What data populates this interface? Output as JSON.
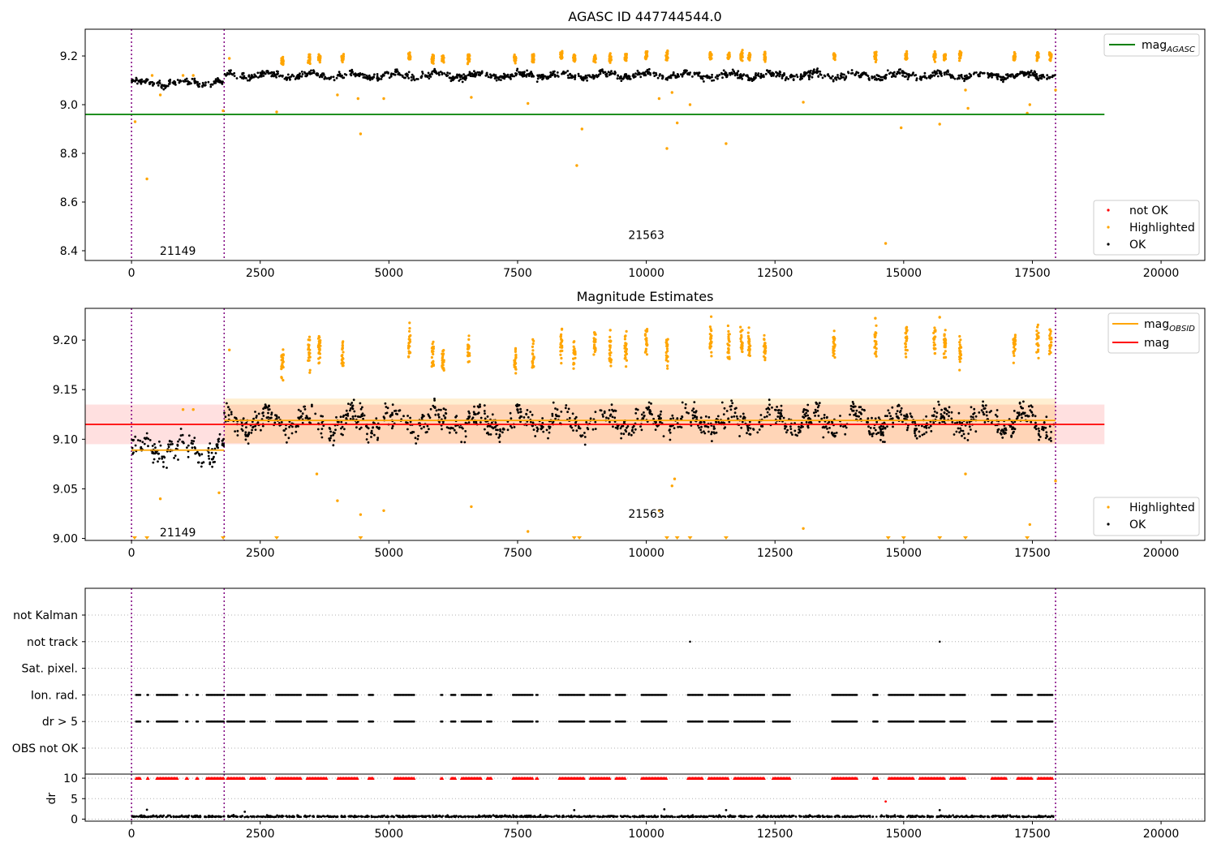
{
  "chart_data": [
    {
      "type": "scatter",
      "title": "AGASC ID 447744544.0",
      "xlim": [
        -900,
        20850
      ],
      "ylim": [
        8.36,
        9.31
      ],
      "xticks": [
        0,
        2500,
        5000,
        7500,
        10000,
        12500,
        15000,
        17500,
        20000
      ],
      "yticks": [
        8.4,
        8.6,
        8.8,
        9.0,
        9.2
      ],
      "obsid_boundaries": [
        0,
        1800,
        17950
      ],
      "obsid_labels": [
        {
          "text": "21149",
          "x": 900,
          "y": 8.4
        },
        {
          "text": "21563",
          "x": 10000,
          "y": 8.465
        }
      ],
      "reference_lines": [
        {
          "name": "mag",
          "subscript": "AGASC",
          "y": 8.96,
          "x": [
            -900,
            18900
          ],
          "color": "#008000"
        }
      ],
      "legend_lines_position": "upper right",
      "legend_points_position": "lower right",
      "legend_points": [
        {
          "name": "not OK",
          "color": "#ff0000"
        },
        {
          "name": "Highlighted",
          "color": "#ffa500"
        },
        {
          "name": "OK",
          "color": "#000000"
        }
      ],
      "series_ok": {
        "name": "OK",
        "color": "#000000",
        "x_range": [
          0,
          17950
        ],
        "segments": [
          {
            "x": [
              0,
              1800
            ],
            "level": 9.09
          },
          {
            "x": [
              1800,
              17950
            ],
            "level": 9.12
          }
        ]
      },
      "series_highlighted": {
        "name": "Highlighted",
        "color": "#ffa500",
        "clusters": [
          [
            2930,
            9.175
          ],
          [
            3450,
            9.19
          ],
          [
            3650,
            9.19
          ],
          [
            4100,
            9.19
          ],
          [
            5400,
            9.2
          ],
          [
            5850,
            9.19
          ],
          [
            6050,
            9.19
          ],
          [
            6550,
            9.19
          ],
          [
            7450,
            9.19
          ],
          [
            7800,
            9.19
          ],
          [
            8350,
            9.2
          ],
          [
            8600,
            9.19
          ],
          [
            9000,
            9.19
          ],
          [
            9300,
            9.19
          ],
          [
            9600,
            9.19
          ],
          [
            10000,
            9.2
          ],
          [
            10400,
            9.2
          ],
          [
            11250,
            9.2
          ],
          [
            11600,
            9.2
          ],
          [
            11850,
            9.2
          ],
          [
            12000,
            9.2
          ],
          [
            12300,
            9.2
          ],
          [
            13650,
            9.2
          ],
          [
            14450,
            9.2
          ],
          [
            15050,
            9.2
          ],
          [
            15600,
            9.2
          ],
          [
            15800,
            9.2
          ],
          [
            16100,
            9.2
          ],
          [
            17150,
            9.2
          ],
          [
            17600,
            9.2
          ],
          [
            17850,
            9.2
          ]
        ],
        "outliers": [
          [
            70,
            8.93
          ],
          [
            300,
            8.695
          ],
          [
            400,
            9.12
          ],
          [
            560,
            9.04
          ],
          [
            1000,
            9.12
          ],
          [
            1200,
            9.12
          ],
          [
            1780,
            8.975
          ],
          [
            1900,
            9.19
          ],
          [
            2820,
            8.97
          ],
          [
            4000,
            9.04
          ],
          [
            4450,
            8.88
          ],
          [
            4400,
            9.025
          ],
          [
            4900,
            9.025
          ],
          [
            6600,
            9.03
          ],
          [
            7700,
            9.005
          ],
          [
            8650,
            8.75
          ],
          [
            8750,
            8.9
          ],
          [
            9300,
            9.21
          ],
          [
            10250,
            9.025
          ],
          [
            10400,
            8.82
          ],
          [
            10500,
            9.05
          ],
          [
            10600,
            8.925
          ],
          [
            10850,
            9.0
          ],
          [
            11550,
            8.84
          ],
          [
            13050,
            9.01
          ],
          [
            14650,
            8.43
          ],
          [
            14950,
            8.905
          ],
          [
            15700,
            8.92
          ],
          [
            16200,
            9.06
          ],
          [
            16250,
            8.985
          ],
          [
            17400,
            8.965
          ],
          [
            17450,
            9.0
          ],
          [
            17950,
            9.06
          ]
        ]
      }
    },
    {
      "type": "scatter",
      "title": "Magnitude Estimates",
      "xlim": [
        -900,
        20850
      ],
      "ylim": [
        8.998,
        9.232
      ],
      "xticks": [
        0,
        2500,
        5000,
        7500,
        10000,
        12500,
        15000,
        17500,
        20000
      ],
      "yticks": [
        9.0,
        9.05,
        9.1,
        9.15,
        9.2
      ],
      "obsid_boundaries": [
        0,
        1800,
        17950
      ],
      "obsid_labels": [
        {
          "text": "21149",
          "x": 900,
          "y": 9.006
        },
        {
          "text": "21563",
          "x": 10000,
          "y": 9.025
        }
      ],
      "bands": [
        {
          "color": "#ff0000",
          "alpha": 0.12,
          "x": [
            -900,
            18900
          ],
          "y": [
            9.095,
            9.135
          ]
        },
        {
          "color": "#ffa500",
          "alpha": 0.18,
          "x": [
            1800,
            17950
          ],
          "y": [
            9.096,
            9.141
          ]
        }
      ],
      "reference_lines": [
        {
          "name": "mag",
          "subscript": "OBSID",
          "color": "#ffa500",
          "segments": [
            {
              "x": [
                0,
                1800
              ],
              "y": 9.089
            },
            {
              "x": [
                1800,
                17950
              ],
              "y": 9.119
            }
          ]
        },
        {
          "name": "mag",
          "subscript": "",
          "color": "#ff0000",
          "segments": [
            {
              "x": [
                -900,
                18900
              ],
              "y": 9.115
            }
          ]
        }
      ],
      "legend_lines_position": "upper right",
      "legend_points_position": "lower right",
      "legend_points": [
        {
          "name": "Highlighted",
          "color": "#ffa500"
        },
        {
          "name": "OK",
          "color": "#000000"
        }
      ],
      "series_ok": {
        "name": "OK",
        "color": "#000000",
        "x_range": [
          0,
          17950
        ],
        "segments": [
          {
            "x": [
              0,
              1800
            ],
            "level": 9.09
          },
          {
            "x": [
              1800,
              17950
            ],
            "level": 9.118
          }
        ]
      },
      "series_highlighted": {
        "name": "Highlighted",
        "color": "#ffa500",
        "clusters": [
          [
            2930,
            9.178
          ],
          [
            3450,
            9.19
          ],
          [
            3650,
            9.19
          ],
          [
            4100,
            9.185
          ],
          [
            5400,
            9.195
          ],
          [
            5850,
            9.183
          ],
          [
            6050,
            9.18
          ],
          [
            6550,
            9.19
          ],
          [
            7450,
            9.18
          ],
          [
            7800,
            9.183
          ],
          [
            8350,
            9.195
          ],
          [
            8600,
            9.188
          ],
          [
            9000,
            9.195
          ],
          [
            9300,
            9.19
          ],
          [
            9600,
            9.19
          ],
          [
            10000,
            9.2
          ],
          [
            10400,
            9.185
          ],
          [
            11250,
            9.2
          ],
          [
            11600,
            9.195
          ],
          [
            11850,
            9.198
          ],
          [
            12000,
            9.195
          ],
          [
            12300,
            9.195
          ],
          [
            13650,
            9.198
          ],
          [
            14450,
            9.2
          ],
          [
            15050,
            9.2
          ],
          [
            15600,
            9.2
          ],
          [
            15800,
            9.198
          ],
          [
            16100,
            9.19
          ],
          [
            17150,
            9.195
          ],
          [
            17600,
            9.2
          ],
          [
            17850,
            9.2
          ]
        ],
        "outliers": [
          [
            560,
            9.04
          ],
          [
            1000,
            9.13
          ],
          [
            1200,
            9.13
          ],
          [
            1700,
            9.046
          ],
          [
            1900,
            9.19
          ],
          [
            3600,
            9.065
          ],
          [
            4000,
            9.038
          ],
          [
            4450,
            9.024
          ],
          [
            4900,
            9.028
          ],
          [
            6600,
            9.032
          ],
          [
            7700,
            9.007
          ],
          [
            9300,
            9.21
          ],
          [
            10250,
            9.028
          ],
          [
            10550,
            9.06
          ],
          [
            10500,
            9.053
          ],
          [
            13050,
            9.01
          ],
          [
            14450,
            9.222
          ],
          [
            15050,
            9.212
          ],
          [
            15700,
            9.223
          ],
          [
            16200,
            9.065
          ],
          [
            17450,
            9.014
          ],
          [
            17950,
            9.058
          ]
        ],
        "clipped": [
          60,
          300,
          1780,
          2820,
          4450,
          8600,
          8700,
          10400,
          10600,
          10850,
          11550,
          14700,
          15000,
          15700,
          16200,
          17400
        ]
      }
    },
    {
      "type": "scatter",
      "title": "",
      "xlim": [
        -900,
        20850
      ],
      "xticks": [
        0,
        2500,
        5000,
        7500,
        10000,
        12500,
        15000,
        17500,
        20000
      ],
      "obsid_boundaries": [
        0,
        1800,
        17950
      ],
      "flag_rows": [
        "not Kalman",
        "not track",
        "Sat. pixel.",
        "Ion. rad.",
        "dr > 5",
        "OBS not OK"
      ],
      "flag_groups_x": [
        [
          80,
          180
        ],
        [
          300,
          330
        ],
        [
          480,
          900
        ],
        [
          1050,
          1100
        ],
        [
          1250,
          1300
        ],
        [
          1450,
          1800
        ],
        [
          1850,
          2200
        ],
        [
          2300,
          2600
        ],
        [
          2800,
          3300
        ],
        [
          3400,
          3800
        ],
        [
          4000,
          4400
        ],
        [
          4600,
          4700
        ],
        [
          5100,
          5500
        ],
        [
          6000,
          6050
        ],
        [
          6200,
          6300
        ],
        [
          6400,
          6800
        ],
        [
          6900,
          7000
        ],
        [
          7400,
          7800
        ],
        [
          7850,
          7900
        ],
        [
          8300,
          8800
        ],
        [
          8900,
          9300
        ],
        [
          9400,
          9600
        ],
        [
          9900,
          10400
        ],
        [
          10800,
          11100
        ],
        [
          11200,
          11600
        ],
        [
          11700,
          12300
        ],
        [
          12450,
          12800
        ],
        [
          13600,
          14100
        ],
        [
          14400,
          14500
        ],
        [
          14700,
          15200
        ],
        [
          15300,
          15800
        ],
        [
          15900,
          16200
        ],
        [
          16700,
          17000
        ],
        [
          17200,
          17500
        ],
        [
          17600,
          17900
        ]
      ],
      "flag_single_points": [
        {
          "row": "not track",
          "x": 10850
        },
        {
          "row": "not track",
          "x": 15700
        }
      ],
      "dr_panel": {
        "ylabel": "dr",
        "yticks": [
          0,
          5,
          10
        ],
        "ylim": [
          -0.5,
          11
        ],
        "baseline": 0.5,
        "clip_value": 10,
        "outliers": [
          [
            300,
            2.3
          ],
          [
            2200,
            1.8
          ],
          [
            8600,
            2.2
          ],
          [
            10350,
            2.4
          ],
          [
            11550,
            2.2
          ],
          [
            14650,
            4.3
          ],
          [
            15700,
            2.2
          ]
        ]
      }
    }
  ]
}
